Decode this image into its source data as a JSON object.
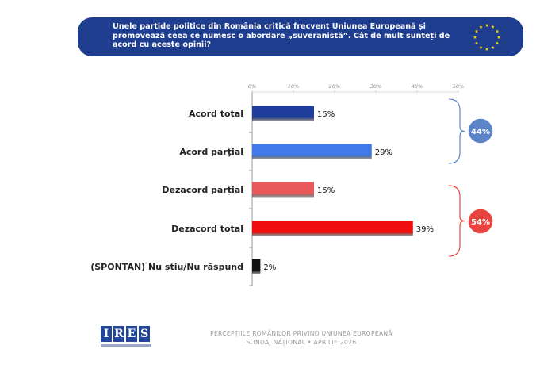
{
  "header": {
    "question": "Unele partide politice din România critică frecvent Uniunea Europeană și promovează ceea ce numesc o abordare „suveranistă”. Cât de mult sunteți de acord cu aceste opinii?"
  },
  "colors": {
    "banner": "#1f3d8f",
    "acord_total": "#1f3d9a",
    "acord_partial": "#3f7ae8",
    "dezacord_partial": "#e8585a",
    "dezacord_total": "#f00d0d",
    "nu_stiu": "#111111",
    "agree_bracket": "#5b84c9",
    "disagree_bracket": "#e8443f"
  },
  "chart_data": {
    "type": "bar",
    "orientation": "horizontal",
    "categories": [
      "Acord total",
      "Acord parțial",
      "Dezacord parțial",
      "Dezacord total",
      "(SPONTAN) Nu știu/Nu răspund"
    ],
    "values": [
      15,
      29,
      15,
      39,
      2
    ],
    "value_labels": [
      "15%",
      "29%",
      "15%",
      "39%",
      "2%"
    ],
    "xlim": [
      0,
      50
    ],
    "ticks": [
      "0%",
      "10%",
      "20%",
      "30%",
      "40%",
      "50%"
    ],
    "tick_axis_position": "top",
    "grid": false,
    "legend": "none",
    "groups": [
      {
        "label": "44%",
        "value": 44,
        "members": [
          "Acord total",
          "Acord parțial"
        ]
      },
      {
        "label": "54%",
        "value": 54,
        "members": [
          "Dezacord parțial",
          "Dezacord total"
        ]
      }
    ]
  },
  "footer": {
    "logo_letters": [
      "I",
      "R",
      "E",
      "S"
    ],
    "line1": "PERCEPȚIILE ROMÂNILOR PRIVIND UNIUNEA EUROPEANĂ",
    "line2": "SONDAJ NAȚIONAL • APRILIE 2026"
  }
}
